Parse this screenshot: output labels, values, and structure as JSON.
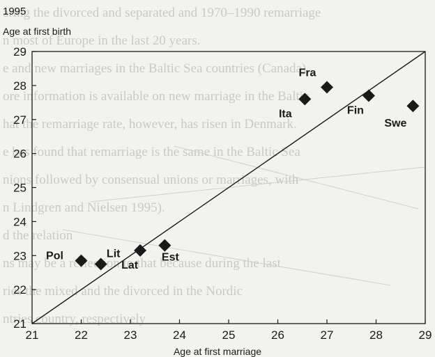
{
  "background_text": [
    "aring the divorced and separated and 1970–1990 remarriage",
    "n most of Europe in the last 20 years.",
    "e and new marriages in the Baltic Sea countries (Canada)",
    "ore information is available on new marriage in the Baltic",
    "hat the remarriage rate, however, has risen in Denmark.",
    "e has found that remarriage is the same in the Baltic Sea",
    "nions followed by consensual unions or marriages, with",
    "n Lindgren and Nielsen 1995).",
    "d the relation",
    "ns may be a reflection to that because during the last",
    "ries the mixed and the divorced in the Nordic",
    "ntries country, respectively"
  ],
  "header": {
    "year": "1995",
    "y_axis_label": "Age at first birth"
  },
  "chart_data": {
    "type": "scatter",
    "xlabel": "Age at first marriage",
    "ylabel": "Age at first birth",
    "xlim": [
      21,
      29
    ],
    "ylim": [
      21,
      29
    ],
    "x_ticks": [
      "21",
      "22",
      "23",
      "24",
      "25",
      "26",
      "27",
      "28",
      "29"
    ],
    "y_ticks": [
      "21",
      "22",
      "23",
      "24",
      "25",
      "26",
      "27",
      "28",
      "29"
    ],
    "reference_line": {
      "type": "diagonal",
      "from": [
        21,
        21
      ],
      "to": [
        29,
        29
      ]
    },
    "marker": "diamond",
    "grid": false,
    "points": [
      {
        "label": "Pol",
        "x": 22.0,
        "y": 22.85
      },
      {
        "label": "Lit",
        "x": 22.4,
        "y": 22.75
      },
      {
        "label": "Lat",
        "x": 23.2,
        "y": 23.15
      },
      {
        "label": "Est",
        "x": 23.7,
        "y": 23.3
      },
      {
        "label": "Ita",
        "x": 26.55,
        "y": 27.6
      },
      {
        "label": "Fra",
        "x": 27.0,
        "y": 27.95
      },
      {
        "label": "Fin",
        "x": 27.85,
        "y": 27.7
      },
      {
        "label": "Swe",
        "x": 28.75,
        "y": 27.4
      }
    ]
  },
  "colors": {
    "ink": "#1a1a1a",
    "paper": "#f2f2ef",
    "ghost_text": "#c9c9c6"
  }
}
